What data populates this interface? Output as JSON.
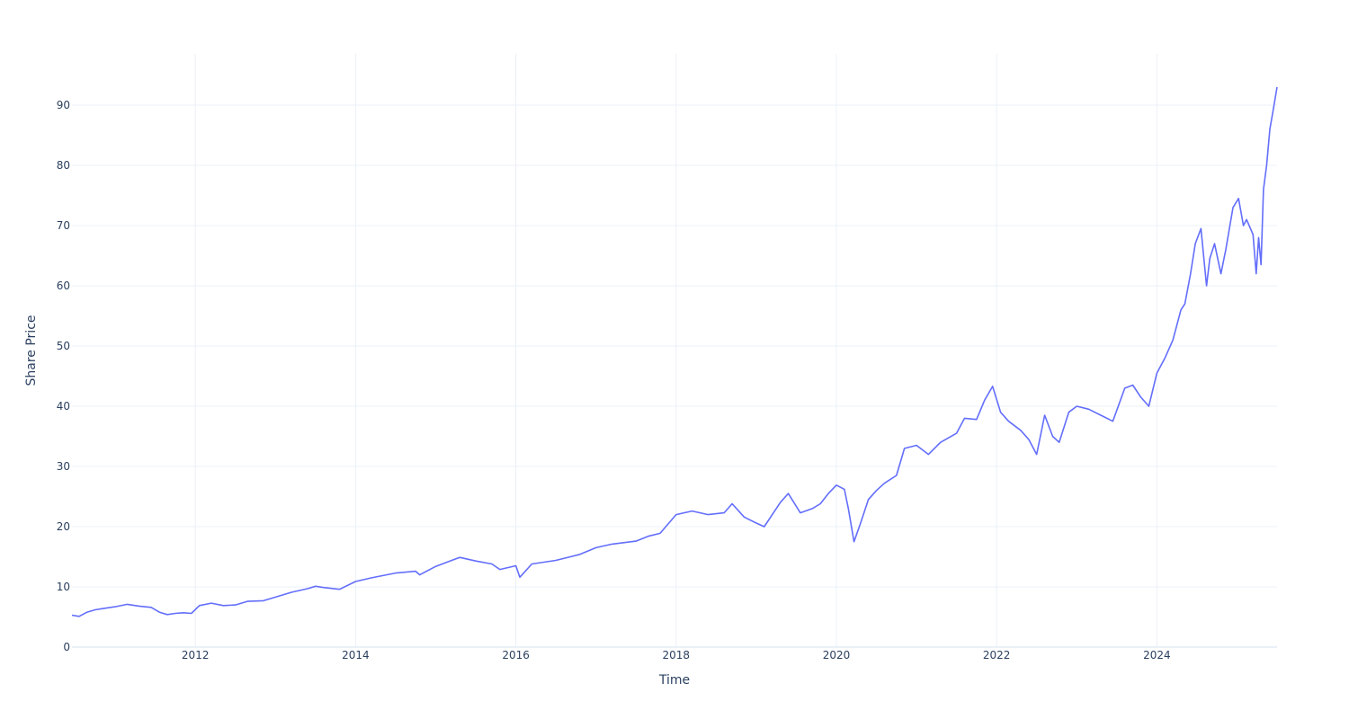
{
  "chart_data": {
    "type": "line",
    "title": "",
    "xlabel": "Time",
    "ylabel": "Share Price",
    "xlim": [
      2010.46,
      2025.5
    ],
    "ylim": [
      0,
      98.5
    ],
    "x_ticks": [
      2012,
      2014,
      2016,
      2018,
      2020,
      2022,
      2024
    ],
    "x_tick_labels": [
      "2012",
      "2014",
      "2016",
      "2018",
      "2020",
      "2022",
      "2024"
    ],
    "y_ticks": [
      0,
      10,
      20,
      30,
      40,
      50,
      60,
      70,
      80,
      90
    ],
    "y_tick_labels": [
      "0",
      "10",
      "20",
      "30",
      "40",
      "50",
      "60",
      "70",
      "80",
      "90"
    ],
    "grid": true,
    "legend": "none",
    "colors": {
      "line": "#636efa",
      "grid": "#ebf0f8",
      "zeroline": "#ebf0f8",
      "text": "#2a3f5f"
    },
    "series": [
      {
        "x": [
          2010.46,
          2010.55,
          2010.65,
          2010.75,
          2010.85,
          2011.0,
          2011.15,
          2011.3,
          2011.45,
          2011.55,
          2011.65,
          2011.75,
          2011.85,
          2011.95,
          2012.05,
          2012.2,
          2012.35,
          2012.5,
          2012.65,
          2012.85,
          2013.0,
          2013.2,
          2013.4,
          2013.5,
          2013.6,
          2013.8,
          2014.0,
          2014.2,
          2014.5,
          2014.75,
          2014.8,
          2015.0,
          2015.2,
          2015.3,
          2015.5,
          2015.7,
          2015.8,
          2016.0,
          2016.05,
          2016.2,
          2016.5,
          2016.8,
          2017.0,
          2017.2,
          2017.5,
          2017.65,
          2017.8,
          2018.0,
          2018.2,
          2018.4,
          2018.6,
          2018.7,
          2018.85,
          2019.0,
          2019.1,
          2019.3,
          2019.4,
          2019.55,
          2019.7,
          2019.8,
          2019.9,
          2020.0,
          2020.1,
          2020.15,
          2020.22,
          2020.3,
          2020.4,
          2020.5,
          2020.6,
          2020.75,
          2020.85,
          2021.0,
          2021.15,
          2021.3,
          2021.5,
          2021.6,
          2021.75,
          2021.85,
          2021.95,
          2022.05,
          2022.15,
          2022.3,
          2022.4,
          2022.5,
          2022.6,
          2022.7,
          2022.78,
          2022.9,
          2023.0,
          2023.15,
          2023.3,
          2023.45,
          2023.6,
          2023.7,
          2023.8,
          2023.9,
          2024.0,
          2024.1,
          2024.2,
          2024.3,
          2024.35,
          2024.42,
          2024.48,
          2024.55,
          2024.62,
          2024.66,
          2024.72,
          2024.8,
          2024.86,
          2024.95,
          2025.02,
          2025.08,
          2025.12,
          2025.2,
          2025.24,
          2025.27,
          2025.3,
          2025.33,
          2025.37,
          2025.41,
          2025.45,
          2025.5
        ],
        "y": [
          5.3,
          5.1,
          5.8,
          6.2,
          6.4,
          6.7,
          7.1,
          6.8,
          6.6,
          5.8,
          5.4,
          5.6,
          5.7,
          5.6,
          6.9,
          7.3,
          6.9,
          7.0,
          7.6,
          7.7,
          8.3,
          9.1,
          9.7,
          10.1,
          9.9,
          9.6,
          10.9,
          11.5,
          12.3,
          12.6,
          12.0,
          13.4,
          14.4,
          14.9,
          14.3,
          13.8,
          12.9,
          13.5,
          11.6,
          13.8,
          14.4,
          15.4,
          16.5,
          17.1,
          17.6,
          18.4,
          18.9,
          22.0,
          22.6,
          22.0,
          22.3,
          23.8,
          21.6,
          20.6,
          20.0,
          24.0,
          25.5,
          22.3,
          23.0,
          23.8,
          25.5,
          26.9,
          26.2,
          23.0,
          17.5,
          20.5,
          24.5,
          26.0,
          27.2,
          28.5,
          33.0,
          33.5,
          32.0,
          34.0,
          35.5,
          38.0,
          37.8,
          41.0,
          43.3,
          39.0,
          37.5,
          36.0,
          34.5,
          32.0,
          38.5,
          35.0,
          34.0,
          39.0,
          40.0,
          39.5,
          38.5,
          37.5,
          43.0,
          43.5,
          41.5,
          40.0,
          45.5,
          48.0,
          51.0,
          56.0,
          57.0,
          62.0,
          67.0,
          69.5,
          60.0,
          64.5,
          67.0,
          62.0,
          66.0,
          73.0,
          74.5,
          70.0,
          71.0,
          68.5,
          62.0,
          68.0,
          63.5,
          76.0,
          80.0,
          86.0,
          89.0,
          93.0
        ]
      }
    ]
  }
}
